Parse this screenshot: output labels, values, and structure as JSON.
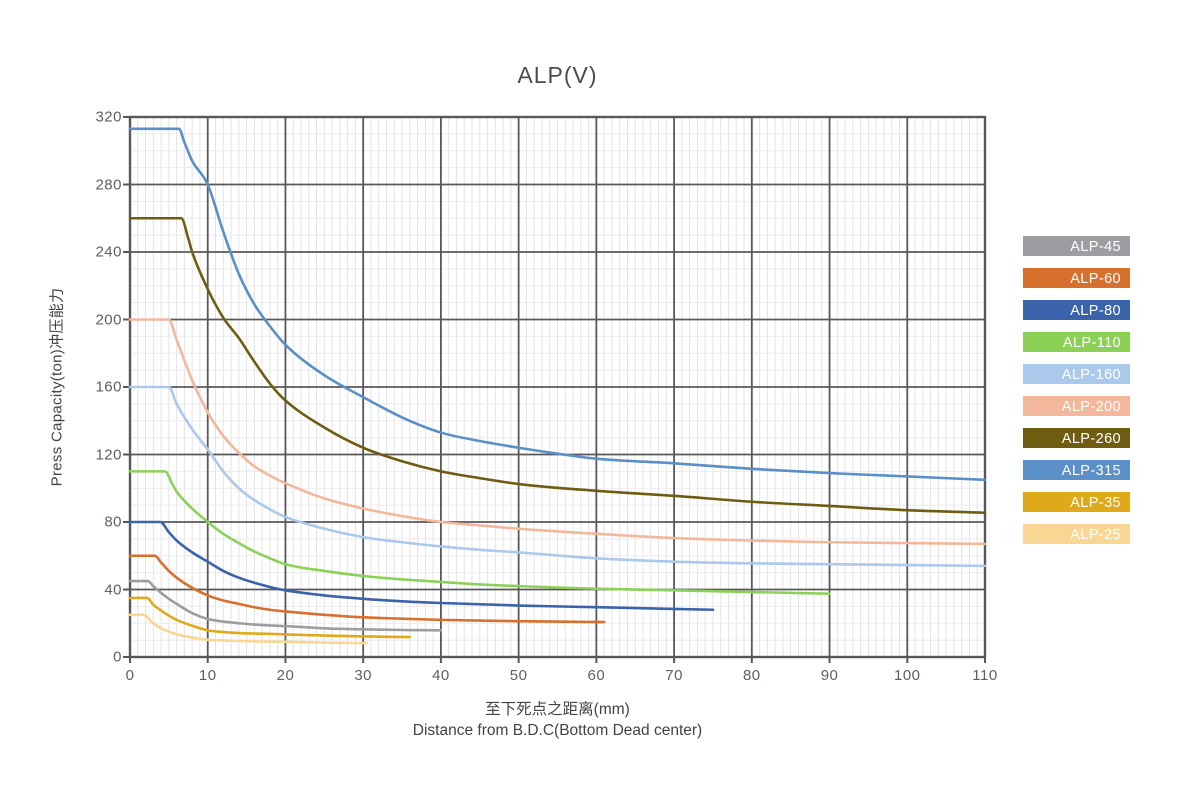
{
  "title": "ALP(V)",
  "axes": {
    "y_label": "Press Capacity(ton)冲压能力",
    "x_label_cn": "至下死点之距离(mm)",
    "x_label_en": "Distance from B.D.C(Bottom Dead center)"
  },
  "legend": {
    "position": "right-outside",
    "items": [
      {
        "label": "ALP-45",
        "color": "#9b9da0"
      },
      {
        "label": "ALP-60",
        "color": "#d7702d"
      },
      {
        "label": "ALP-80",
        "color": "#3b63ac"
      },
      {
        "label": "ALP-110",
        "color": "#8bd157"
      },
      {
        "label": "ALP-160",
        "color": "#abc9ea"
      },
      {
        "label": "ALP-200",
        "color": "#f3b79c"
      },
      {
        "label": "ALP-260",
        "color": "#6e5d11"
      },
      {
        "label": "ALP-315",
        "color": "#5a8fc7"
      },
      {
        "label": "ALP-35",
        "color": "#dfaa1a"
      },
      {
        "label": "ALP-25",
        "color": "#f9d694"
      }
    ]
  },
  "chart_data": {
    "type": "line",
    "title": "ALP(V)",
    "xlabel": "至下死点之距离(mm) Distance from B.D.C(Bottom Dead center)",
    "ylabel": "Press Capacity(ton)冲压能力",
    "xlim": [
      0,
      110
    ],
    "ylim": [
      0,
      320
    ],
    "x_ticks": [
      0,
      10,
      20,
      30,
      40,
      50,
      60,
      70,
      80,
      90,
      100,
      110
    ],
    "y_ticks": [
      0,
      40,
      80,
      120,
      160,
      200,
      240,
      280,
      320
    ],
    "x_minor_step": 1,
    "y_minor_step": 10,
    "grid": true,
    "legend_position": "right-outside",
    "series": [
      {
        "name": "ALP-315",
        "color": "#5a8fc7",
        "points": [
          [
            0,
            313
          ],
          [
            6.3,
            313
          ],
          [
            7,
            305
          ],
          [
            8,
            294
          ],
          [
            10,
            280
          ],
          [
            12,
            252
          ],
          [
            14,
            227
          ],
          [
            16,
            209
          ],
          [
            18,
            196
          ],
          [
            20,
            185
          ],
          [
            25,
            167
          ],
          [
            30,
            154
          ],
          [
            35,
            142
          ],
          [
            40,
            133
          ],
          [
            45,
            128
          ],
          [
            50,
            124
          ],
          [
            55,
            120.5
          ],
          [
            60,
            117.5
          ],
          [
            70,
            114.8
          ],
          [
            80,
            111.5
          ],
          [
            90,
            109
          ],
          [
            100,
            107
          ],
          [
            110,
            105
          ]
        ]
      },
      {
        "name": "ALP-260",
        "color": "#6e5d11",
        "points": [
          [
            0,
            260
          ],
          [
            6.6,
            260
          ],
          [
            7.5,
            248
          ],
          [
            8,
            240
          ],
          [
            10,
            218
          ],
          [
            12,
            201
          ],
          [
            14,
            189
          ],
          [
            16,
            175
          ],
          [
            18,
            162
          ],
          [
            20,
            152
          ],
          [
            25,
            136
          ],
          [
            30,
            124
          ],
          [
            35,
            116
          ],
          [
            40,
            110
          ],
          [
            45,
            106
          ],
          [
            50,
            102.5
          ],
          [
            60,
            98.5
          ],
          [
            70,
            95.5
          ],
          [
            80,
            92
          ],
          [
            90,
            89.5
          ],
          [
            100,
            87
          ],
          [
            110,
            85.5
          ]
        ]
      },
      {
        "name": "ALP-200",
        "color": "#f3b79c",
        "points": [
          [
            0,
            200
          ],
          [
            5,
            200
          ],
          [
            6,
            188
          ],
          [
            8,
            164
          ],
          [
            10,
            145
          ],
          [
            12,
            131
          ],
          [
            14,
            121
          ],
          [
            16,
            113
          ],
          [
            18,
            107.5
          ],
          [
            20,
            103
          ],
          [
            25,
            94
          ],
          [
            30,
            88
          ],
          [
            35,
            83.5
          ],
          [
            40,
            80
          ],
          [
            45,
            78
          ],
          [
            50,
            76
          ],
          [
            60,
            73
          ],
          [
            70,
            70.5
          ],
          [
            80,
            69
          ],
          [
            90,
            68
          ],
          [
            100,
            67.5
          ],
          [
            110,
            67
          ]
        ]
      },
      {
        "name": "ALP-160",
        "color": "#abc9ea",
        "points": [
          [
            0,
            160
          ],
          [
            5,
            160
          ],
          [
            6,
            150
          ],
          [
            8,
            135
          ],
          [
            10,
            123
          ],
          [
            12,
            110
          ],
          [
            14,
            100
          ],
          [
            16,
            93
          ],
          [
            18,
            87.5
          ],
          [
            20,
            83
          ],
          [
            25,
            76
          ],
          [
            30,
            71
          ],
          [
            35,
            68
          ],
          [
            40,
            65.5
          ],
          [
            45,
            63.5
          ],
          [
            50,
            62
          ],
          [
            60,
            58.5
          ],
          [
            70,
            56.5
          ],
          [
            80,
            55.5
          ],
          [
            90,
            55
          ],
          [
            100,
            54.5
          ],
          [
            110,
            54
          ]
        ]
      },
      {
        "name": "ALP-110",
        "color": "#8bd157",
        "points": [
          [
            0,
            110
          ],
          [
            4.5,
            110
          ],
          [
            5.5,
            102
          ],
          [
            6,
            98
          ],
          [
            8,
            88
          ],
          [
            10,
            80
          ],
          [
            12,
            73
          ],
          [
            14,
            67.5
          ],
          [
            16,
            62.5
          ],
          [
            18,
            58.5
          ],
          [
            20,
            55
          ],
          [
            25,
            51
          ],
          [
            30,
            48
          ],
          [
            35,
            46
          ],
          [
            40,
            44.5
          ],
          [
            45,
            43
          ],
          [
            50,
            42
          ],
          [
            60,
            40.5
          ],
          [
            70,
            39.5
          ],
          [
            80,
            38.5
          ],
          [
            90,
            37.5
          ]
        ]
      },
      {
        "name": "ALP-80",
        "color": "#3b63ac",
        "points": [
          [
            0,
            80
          ],
          [
            3.9,
            80
          ],
          [
            5,
            74
          ],
          [
            6,
            69
          ],
          [
            8,
            62
          ],
          [
            10,
            56.5
          ],
          [
            12,
            51
          ],
          [
            14,
            47
          ],
          [
            16,
            44
          ],
          [
            18,
            41.5
          ],
          [
            20,
            39.5
          ],
          [
            25,
            36.5
          ],
          [
            30,
            34.5
          ],
          [
            35,
            33
          ],
          [
            40,
            32
          ],
          [
            50,
            30.5
          ],
          [
            60,
            29.5
          ],
          [
            70,
            28.5
          ],
          [
            75,
            28
          ]
        ]
      },
      {
        "name": "ALP-60",
        "color": "#d7702d",
        "points": [
          [
            0,
            60
          ],
          [
            3.2,
            60
          ],
          [
            4,
            56
          ],
          [
            5,
            51
          ],
          [
            6,
            47
          ],
          [
            8,
            41
          ],
          [
            10,
            36.5
          ],
          [
            12,
            33.5
          ],
          [
            14,
            31.5
          ],
          [
            16,
            29.5
          ],
          [
            18,
            28
          ],
          [
            20,
            27
          ],
          [
            25,
            25
          ],
          [
            30,
            23.5
          ],
          [
            35,
            22.7
          ],
          [
            40,
            22
          ],
          [
            50,
            21.2
          ],
          [
            61,
            20.7
          ]
        ]
      },
      {
        "name": "ALP-45",
        "color": "#9b9da0",
        "points": [
          [
            0,
            45
          ],
          [
            2.3,
            45
          ],
          [
            3,
            42
          ],
          [
            4,
            38
          ],
          [
            5,
            34.5
          ],
          [
            6,
            31.5
          ],
          [
            8,
            26
          ],
          [
            10,
            22.5
          ],
          [
            12,
            21
          ],
          [
            14,
            20
          ],
          [
            16,
            19.2
          ],
          [
            18,
            18.7
          ],
          [
            20,
            18.3
          ],
          [
            25,
            17
          ],
          [
            30,
            16.4
          ],
          [
            35,
            16
          ],
          [
            40,
            15.8
          ]
        ]
      },
      {
        "name": "ALP-35",
        "color": "#dfaa1a",
        "points": [
          [
            0,
            35
          ],
          [
            2.2,
            35
          ],
          [
            3,
            31
          ],
          [
            4,
            27.5
          ],
          [
            5,
            24.5
          ],
          [
            6,
            22
          ],
          [
            8,
            18.5
          ],
          [
            10,
            15.8
          ],
          [
            12,
            14.8
          ],
          [
            14,
            14.2
          ],
          [
            16,
            13.9
          ],
          [
            18,
            13.7
          ],
          [
            20,
            13.4
          ],
          [
            25,
            12.7
          ],
          [
            30,
            12.2
          ],
          [
            36,
            11.8
          ]
        ]
      },
      {
        "name": "ALP-25",
        "color": "#f9d694",
        "points": [
          [
            0,
            25
          ],
          [
            1.7,
            25
          ],
          [
            3,
            20
          ],
          [
            4,
            17
          ],
          [
            5,
            15
          ],
          [
            6,
            13.5
          ],
          [
            8,
            11.5
          ],
          [
            10,
            10.2
          ],
          [
            12,
            9.8
          ],
          [
            14,
            9.5
          ],
          [
            16,
            9.3
          ],
          [
            18,
            9.1
          ],
          [
            20,
            9
          ],
          [
            25,
            8.5
          ],
          [
            30.5,
            8.2
          ]
        ]
      }
    ],
    "grid_colors": {
      "minor_v": "#e3e3e6",
      "minor_h": "#ebebee",
      "major": "#58585a",
      "border": "#56575a"
    }
  }
}
